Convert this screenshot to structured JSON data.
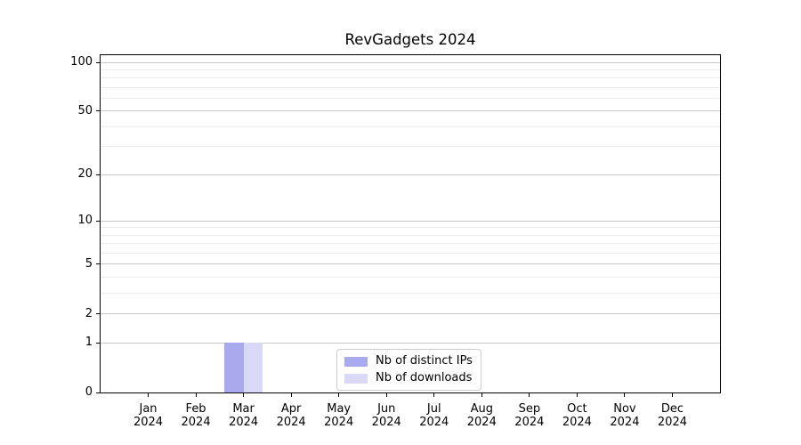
{
  "chart_data": {
    "type": "bar",
    "title": "RevGadgets 2024",
    "categories": [
      "Jan 2024",
      "Feb 2024",
      "Mar 2024",
      "Apr 2024",
      "May 2024",
      "Jun 2024",
      "Jul 2024",
      "Aug 2024",
      "Sep 2024",
      "Oct 2024",
      "Nov 2024",
      "Dec 2024"
    ],
    "series": [
      {
        "name": "Nb of distinct IPs",
        "color": "#a9a9ef",
        "values": [
          0,
          0,
          1,
          0,
          0,
          0,
          0,
          0,
          0,
          0,
          0,
          0
        ]
      },
      {
        "name": "Nb of downloads",
        "color": "#d9d9f7",
        "values": [
          0,
          0,
          1,
          0,
          0,
          0,
          0,
          0,
          0,
          0,
          0,
          0
        ]
      }
    ],
    "xlabel": "",
    "ylabel": "",
    "yscale": "log1p",
    "ylim": [
      0,
      111
    ],
    "y_major_ticks": [
      0,
      1,
      2,
      5,
      10,
      20,
      50,
      100
    ],
    "y_minor_gridlines": [
      3,
      4,
      6,
      7,
      8,
      9,
      30,
      40,
      60,
      70,
      80,
      90
    ],
    "grid": "horizontal",
    "bar_width_fraction": 0.4,
    "legend": {
      "position": "lower center",
      "items": [
        "Nb of distinct IPs",
        "Nb of downloads"
      ]
    }
  }
}
